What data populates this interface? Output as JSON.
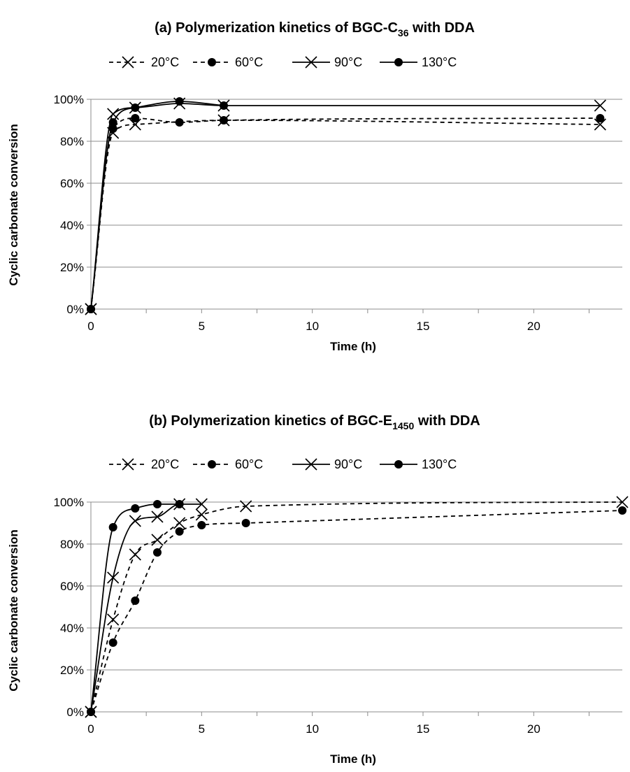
{
  "chart_data": [
    {
      "type": "line",
      "title_prefix": "(a) Polymerization kinetics of BGC-C",
      "title_sub": "36",
      "title_suffix": " with DDA",
      "xlabel": "Time (h)",
      "ylabel": "Cyclic carbonate conversion",
      "xlim": [
        0,
        24
      ],
      "ylim": [
        0,
        100
      ],
      "xticks": [
        0,
        5,
        10,
        15,
        20
      ],
      "yticks": [
        "0%",
        "20%",
        "40%",
        "60%",
        "80%",
        "100%"
      ],
      "grid": "horizontal",
      "legend_position": "top",
      "series": [
        {
          "name": "20°C",
          "dashed": true,
          "marker": "x",
          "x": [
            0,
            1,
            2,
            6,
            23
          ],
          "y": [
            0,
            84,
            88,
            90,
            88
          ]
        },
        {
          "name": "60°C",
          "dashed": true,
          "marker": "dot",
          "x": [
            0,
            1,
            2,
            4,
            6,
            23
          ],
          "y": [
            0,
            86,
            91,
            89,
            90,
            91
          ]
        },
        {
          "name": "90°C",
          "dashed": false,
          "marker": "x",
          "x": [
            0,
            1,
            2,
            4,
            6,
            23
          ],
          "y": [
            0,
            93,
            96,
            98,
            97,
            97
          ]
        },
        {
          "name": "130°C",
          "dashed": false,
          "marker": "dot",
          "x": [
            0,
            1,
            2,
            4,
            6
          ],
          "y": [
            0,
            89,
            96,
            99,
            97
          ]
        }
      ]
    },
    {
      "type": "line",
      "title_prefix": "(b) Polymerization kinetics of BGC-E",
      "title_sub": "1450",
      "title_suffix": " with DDA",
      "xlabel": "Time (h)",
      "ylabel": "Cyclic carbonate conversion",
      "xlim": [
        0,
        24
      ],
      "ylim": [
        0,
        100
      ],
      "xticks": [
        0,
        5,
        10,
        15,
        20
      ],
      "yticks": [
        "0%",
        "20%",
        "40%",
        "60%",
        "80%",
        "100%"
      ],
      "grid": "horizontal",
      "legend_position": "top",
      "series": [
        {
          "name": "20°C",
          "dashed": true,
          "marker": "x",
          "x": [
            0,
            1,
            2,
            3,
            4,
            5,
            7,
            24
          ],
          "y": [
            0,
            44,
            75,
            82,
            90,
            94,
            98,
            100
          ]
        },
        {
          "name": "60°C",
          "dashed": true,
          "marker": "dot",
          "x": [
            0,
            1,
            2,
            3,
            4,
            5,
            7,
            24
          ],
          "y": [
            0,
            33,
            53,
            76,
            86,
            89,
            90,
            96
          ]
        },
        {
          "name": "90°C",
          "dashed": false,
          "marker": "x",
          "x": [
            0,
            1,
            2,
            3,
            4,
            5
          ],
          "y": [
            0,
            64,
            91,
            93,
            99,
            99
          ]
        },
        {
          "name": "130°C",
          "dashed": false,
          "marker": "dot",
          "x": [
            0,
            1,
            2,
            3,
            4
          ],
          "y": [
            0,
            88,
            97,
            99,
            99
          ]
        }
      ]
    }
  ]
}
